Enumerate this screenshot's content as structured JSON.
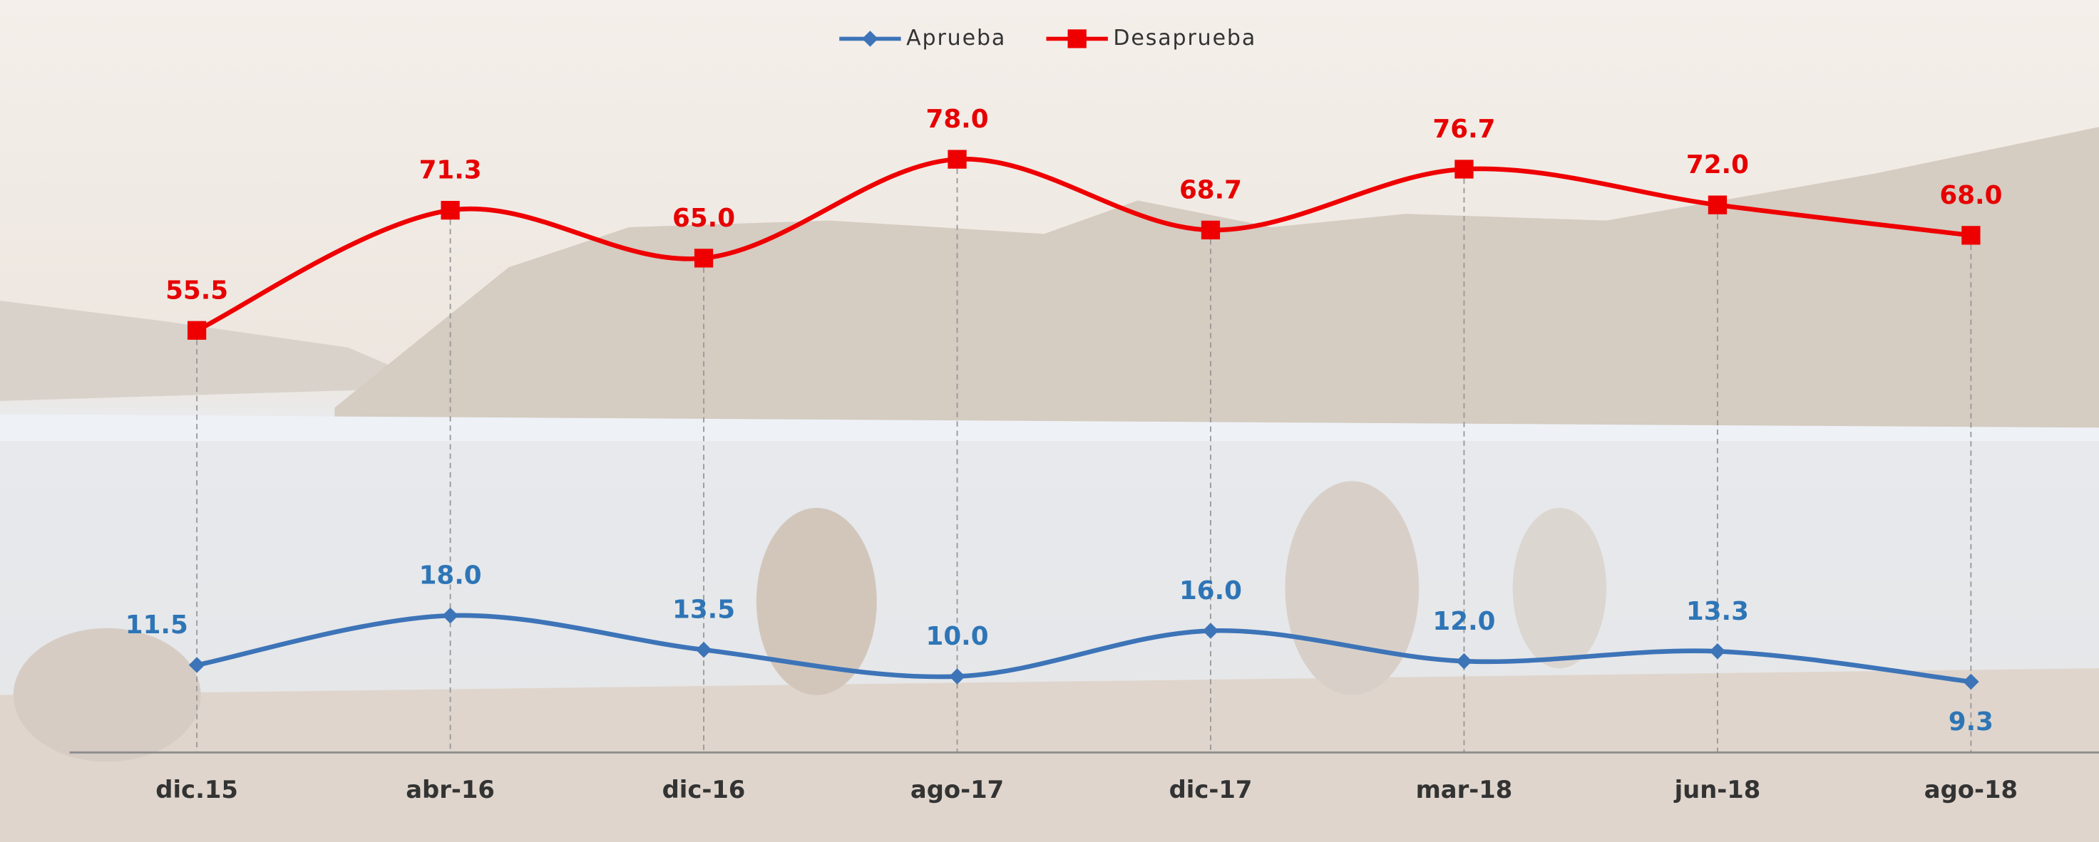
{
  "chart_data": {
    "type": "line",
    "categories": [
      "dic.15",
      "abr-16",
      "dic-16",
      "ago-17",
      "dic-17",
      "mar-18",
      "jun-18",
      "ago-18"
    ],
    "series": [
      {
        "name": "Aprueba",
        "color": "#3d74b8",
        "label_color": "#2e75b6",
        "marker": "diamond",
        "values": [
          11.5,
          18.0,
          13.5,
          10.0,
          16.0,
          12.0,
          13.3,
          9.3
        ],
        "value_labels": [
          "11.5",
          "18.0",
          "13.5",
          "10.0",
          "16.0",
          "12.0",
          "13.3",
          "9.3"
        ]
      },
      {
        "name": "Desaprueba",
        "color": "#ee0000",
        "label_color": "#e60000",
        "marker": "square",
        "values": [
          55.5,
          71.3,
          65.0,
          78.0,
          68.7,
          76.7,
          72.0,
          68.0
        ],
        "value_labels": [
          "55.5",
          "71.3",
          "65.0",
          "78.0",
          "68.7",
          "76.7",
          "72.0",
          "68.0"
        ]
      }
    ],
    "ylim": [
      0,
      100
    ],
    "smooth": true,
    "legend": "top"
  }
}
